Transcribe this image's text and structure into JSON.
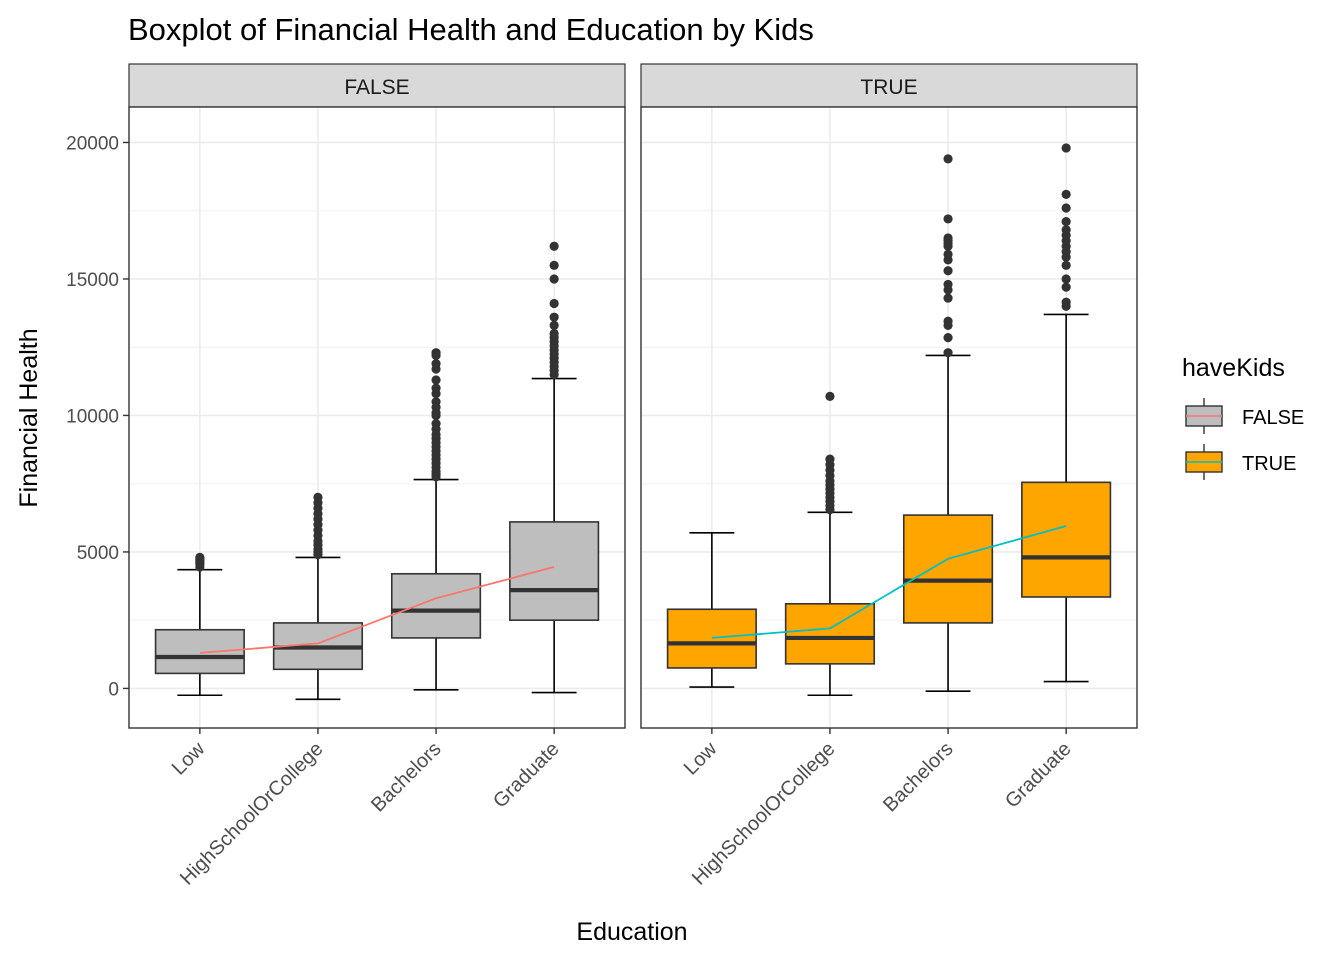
{
  "chart_data": {
    "type": "boxplot",
    "title": "Boxplot of Financial Health and Education by Kids",
    "xlabel": "Education",
    "ylabel": "Financial Health",
    "ylim": [
      -1450,
      21300
    ],
    "y_ticks": [
      0,
      5000,
      10000,
      15000,
      20000
    ],
    "categories": [
      "Low",
      "HighSchoolOrCollege",
      "Bachelors",
      "Graduate"
    ],
    "grid": true,
    "legend": {
      "title": "haveKids",
      "placement": "right",
      "entries": [
        {
          "label": "FALSE",
          "fill": "#bebebe",
          "line": "#f8766d"
        },
        {
          "label": "TRUE",
          "fill": "#ffa500",
          "line": "#00bfc4"
        }
      ]
    },
    "panels": [
      {
        "strip": "FALSE",
        "fill": "#bebebe",
        "mean_line_color": "#f8766d",
        "boxes": [
          {
            "category": "Low",
            "lower_whisker": -250,
            "q1": 550,
            "median": 1150,
            "q3": 2150,
            "upper_whisker": 4350,
            "outliers": [
              4450,
              4550,
              4600,
              4650,
              4700,
              4750,
              4800
            ]
          },
          {
            "category": "HighSchoolOrCollege",
            "lower_whisker": -400,
            "q1": 700,
            "median": 1500,
            "q3": 2400,
            "upper_whisker": 4800,
            "outliers": [
              4900,
              5000,
              5100,
              5250,
              5400,
              5600,
              5800,
              6000,
              6200,
              6400,
              6600,
              6800,
              7000
            ]
          },
          {
            "category": "Bachelors",
            "lower_whisker": -50,
            "q1": 1850,
            "median": 2850,
            "q3": 4200,
            "upper_whisker": 7650,
            "outliers": [
              7750,
              7850,
              7950,
              8100,
              8250,
              8400,
              8550,
              8700,
              8850,
              9000,
              9150,
              9300,
              9500,
              9700,
              10000,
              10100,
              10300,
              10500,
              10800,
              11000,
              11300,
              11700,
              11900,
              12200,
              12300
            ]
          },
          {
            "category": "Graduate",
            "lower_whisker": -150,
            "q1": 2500,
            "median": 3600,
            "q3": 6100,
            "upper_whisker": 11350,
            "outliers": [
              11500,
              11650,
              11800,
              11950,
              12100,
              12250,
              12400,
              12550,
              12700,
              12850,
              13000,
              13300,
              13600,
              14100,
              15000,
              15500,
              16200
            ]
          }
        ],
        "means": [
          1300,
          1650,
          3300,
          4450
        ]
      },
      {
        "strip": "TRUE",
        "fill": "#ffa500",
        "mean_line_color": "#00bfc4",
        "boxes": [
          {
            "category": "Low",
            "lower_whisker": 50,
            "q1": 750,
            "median": 1650,
            "q3": 2900,
            "upper_whisker": 5700,
            "outliers": []
          },
          {
            "category": "HighSchoolOrCollege",
            "lower_whisker": -250,
            "q1": 900,
            "median": 1850,
            "q3": 3100,
            "upper_whisker": 6450,
            "outliers": [
              6550,
              6700,
              6850,
              7000,
              7150,
              7300,
              7450,
              7600,
              7800,
              8000,
              8200,
              8400,
              10700
            ]
          },
          {
            "category": "Bachelors",
            "lower_whisker": -100,
            "q1": 2400,
            "median": 3950,
            "q3": 6350,
            "upper_whisker": 12200,
            "outliers": [
              12300,
              12850,
              13300,
              13450,
              14300,
              14600,
              14800,
              15300,
              15700,
              15900,
              16200,
              16300,
              16400,
              16500,
              17200,
              19400
            ]
          },
          {
            "category": "Graduate",
            "lower_whisker": 250,
            "q1": 3350,
            "median": 4800,
            "q3": 7550,
            "upper_whisker": 13700,
            "outliers": [
              14000,
              14150,
              14700,
              15000,
              15500,
              15800,
              16000,
              16200,
              16400,
              16600,
              16800,
              17100,
              17600,
              18100,
              19800
            ]
          }
        ],
        "means": [
          1850,
          2200,
          4750,
          5950
        ]
      }
    ]
  }
}
